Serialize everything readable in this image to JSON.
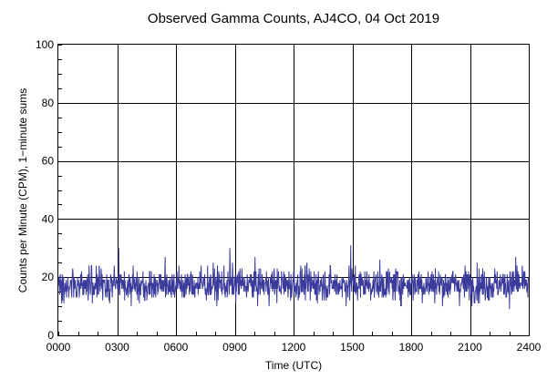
{
  "chart_data": {
    "type": "line",
    "title": "Observed Gamma Counts, AJ4CO, 04 Oct 2019",
    "xlabel": "Time (UTC)",
    "ylabel": "Counts per Minute (CPM), 1−minute sums",
    "x_ticks": [
      "0000",
      "0300",
      "0600",
      "0900",
      "1200",
      "1500",
      "1800",
      "2100",
      "2400"
    ],
    "y_ticks": [
      "0",
      "20",
      "40",
      "60",
      "80",
      "100"
    ],
    "xlim_minutes": [
      0,
      1440
    ],
    "ylim": [
      0,
      100
    ],
    "grid": true,
    "series_color": "#3b3b9c",
    "series": [
      {
        "name": "",
        "sample_interval_minutes": 1,
        "mean": 17.5,
        "min": 6,
        "max": 31,
        "typical_range": [
          11,
          24
        ],
        "peaks": [
          {
            "time": "0305",
            "value": 30
          },
          {
            "time": "0845",
            "value": 30
          },
          {
            "time": "1455",
            "value": 31
          },
          {
            "time": "2320",
            "value": 27
          }
        ]
      }
    ]
  }
}
